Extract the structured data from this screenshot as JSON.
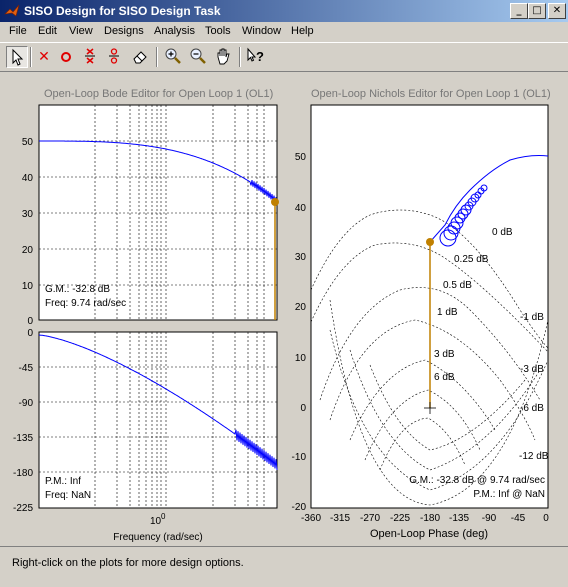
{
  "window": {
    "title": "SISO Design for SISO Design Task",
    "buttons": [
      "_",
      "□",
      "✕"
    ]
  },
  "menu": [
    "File",
    "Edit",
    "View",
    "Designs",
    "Analysis",
    "Tools",
    "Window",
    "Help"
  ],
  "toolbar": [
    "select-arrow",
    "add-pole",
    "add-zero",
    "delete-pole",
    "delete-zero",
    "eraser",
    "zoom-in",
    "zoom-out",
    "pan-hand",
    "whats-this-help"
  ],
  "bode": {
    "title": "Open-Loop Bode Editor for Open Loop 1 (OL1)",
    "mag_yticks": [
      "50",
      "40",
      "30",
      "20",
      "10",
      "0"
    ],
    "phase_yticks": [
      "0",
      "-45",
      "-90",
      "-135",
      "-180",
      "-225"
    ],
    "gm_text": "G.M.: -32.8 dB",
    "gm_freq": "Freq: 9.74 rad/sec",
    "pm_text": "P.M.: Inf",
    "pm_freq": "Freq: NaN",
    "xtick_base": "10",
    "xtick_exp": "0",
    "xlabel": "Frequency (rad/sec)"
  },
  "nichols": {
    "title": "Open-Loop Nichols Editor for Open Loop 1 (OL1)",
    "yticks": [
      "50",
      "40",
      "30",
      "20",
      "10",
      "0",
      "-10",
      "-20"
    ],
    "xticks": [
      "-360",
      "-315",
      "-270",
      "-225",
      "-180",
      "-135",
      "-90",
      "-45",
      "0"
    ],
    "xlabel": "Open-Loop Phase (deg)",
    "contours": [
      "0 dB",
      "0.25 dB",
      "0.5 dB",
      "1 dB",
      "3 dB",
      "6 dB",
      "-1 dB",
      "-3 dB",
      "-6 dB",
      "-12 dB"
    ],
    "gm_text": "G.M.: -32.8 dB @ 9.74 rad/sec",
    "pm_text": "P.M.: Inf @ NaN"
  },
  "colors": {
    "curve": "#0000ff",
    "marker": "#c08000",
    "grid": "#000000"
  },
  "status": "Right-click on the plots for more design options."
}
